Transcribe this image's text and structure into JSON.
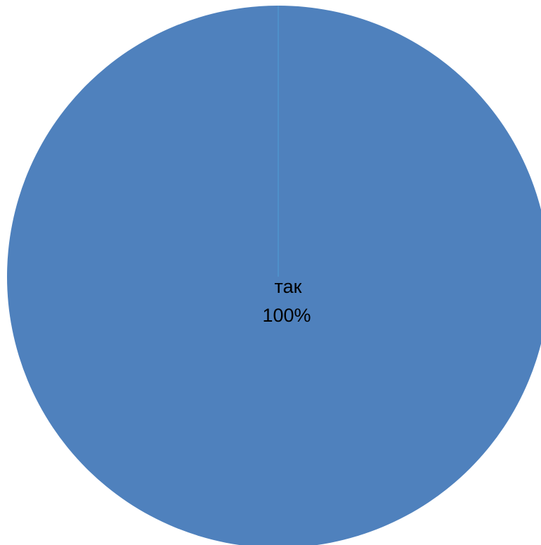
{
  "chart_data": {
    "type": "pie",
    "slices": [
      {
        "label": "так",
        "value": 100,
        "percent_label": "100%",
        "color": "#4f81bd"
      }
    ],
    "legend": "none"
  },
  "colors": {
    "background": "#ffffff",
    "slice_edge": "#4f9fd6"
  }
}
